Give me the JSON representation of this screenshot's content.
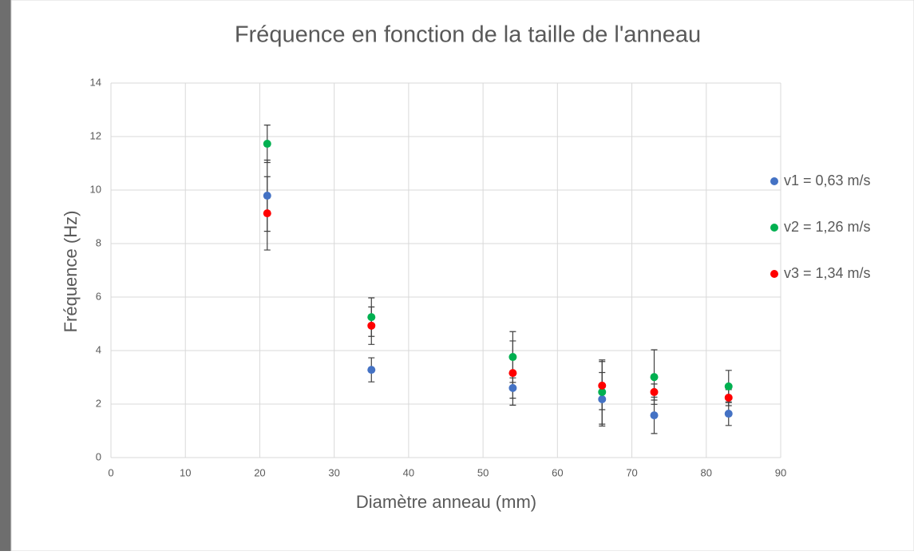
{
  "chart_data": {
    "type": "scatter",
    "title": "Fréquence en fonction de la taille de l'anneau",
    "x_label": "Diamètre anneau (mm)",
    "y_label": "Fréquence (Hz)",
    "x": [
      21,
      35,
      54,
      66,
      73,
      83
    ],
    "series": [
      {
        "name": "v1 = 0,63 m/s",
        "color": "#4472c4",
        "values": [
          9.79,
          3.28,
          2.6,
          2.18,
          1.58,
          1.64
        ],
        "errors": [
          1.33,
          0.45,
          0.38,
          1.0,
          0.68,
          0.44
        ]
      },
      {
        "name": "v2 = 1,26 m/s",
        "color": "#00b050",
        "values": [
          11.73,
          5.25,
          3.76,
          2.45,
          3.01,
          2.66
        ],
        "errors": [
          0.7,
          0.72,
          0.95,
          1.2,
          1.02,
          0.6
        ]
      },
      {
        "name": "v3 = 1,34 m/s",
        "color": "#ff0000",
        "values": [
          9.13,
          4.93,
          3.16,
          2.69,
          2.45,
          2.24
        ],
        "errors": [
          1.37,
          0.7,
          1.2,
          0.9,
          0.3,
          0.3
        ]
      }
    ],
    "xlim": [
      0,
      90
    ],
    "xticks": [
      0,
      10,
      20,
      30,
      40,
      50,
      60,
      70,
      80,
      90
    ],
    "ylim": [
      0,
      14
    ],
    "yticks": [
      0,
      2,
      4,
      6,
      8,
      10,
      12,
      14
    ],
    "grid": true,
    "legend": "right"
  }
}
